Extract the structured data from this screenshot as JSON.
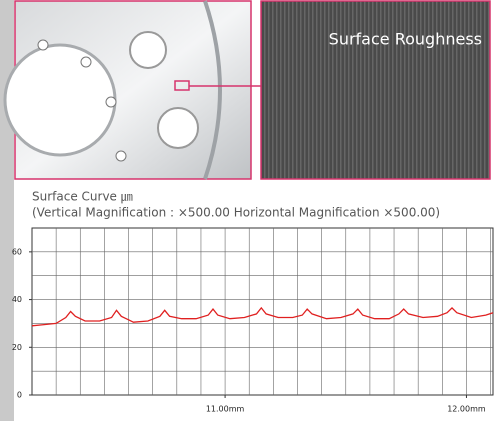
{
  "image_label": "Surface Roughness",
  "chart_data": {
    "type": "line",
    "title": "Surface Curve ㎛",
    "subtitle": "(Vertical Magnification : ×500.00 Horizontal Magnification ×500.00)",
    "xlim": [
      10.2,
      12.11
    ],
    "xticks": [
      {
        "value": 11,
        "label": "11.00mm"
      },
      {
        "value": 12,
        "label": "12.00mm"
      }
    ],
    "xgrid": [
      10.3,
      10.4,
      10.5,
      10.6,
      10.7,
      10.8,
      10.9,
      11.0,
      11.1,
      11.2,
      11.3,
      11.4,
      11.5,
      11.6,
      11.7,
      11.8,
      11.9,
      12.0,
      12.1
    ],
    "ylim": [
      0,
      70
    ],
    "yticks": [
      0,
      20,
      40,
      60
    ],
    "ygrid": [
      10,
      20,
      30,
      40,
      50,
      60
    ],
    "grid": true,
    "series": [
      {
        "color": "#e02020",
        "x": [
          10.2,
          10.25,
          10.3,
          10.34,
          10.36,
          10.38,
          10.42,
          10.48,
          10.53,
          10.55,
          10.57,
          10.62,
          10.68,
          10.73,
          10.75,
          10.77,
          10.82,
          10.88,
          10.93,
          10.95,
          10.97,
          11.02,
          11.08,
          11.13,
          11.15,
          11.17,
          11.22,
          11.28,
          11.32,
          11.34,
          11.36,
          11.42,
          11.48,
          11.53,
          11.55,
          11.57,
          11.62,
          11.68,
          11.72,
          11.74,
          11.76,
          11.82,
          11.88,
          11.92,
          11.94,
          11.96,
          12.02,
          12.08,
          12.11
        ],
        "values": [
          29,
          29.5,
          30,
          32.5,
          35,
          33,
          31,
          31,
          32.5,
          35.5,
          33,
          30.5,
          31,
          33,
          35.5,
          33,
          32,
          32,
          33.5,
          36,
          33.5,
          32,
          32.5,
          34,
          36.5,
          34,
          32.5,
          32.5,
          33.5,
          36,
          34,
          32,
          32.5,
          34,
          36,
          33.5,
          32,
          32,
          34,
          36,
          34,
          32.5,
          33,
          34.5,
          36.5,
          34.5,
          32.5,
          33.5,
          34.5
        ]
      }
    ]
  }
}
